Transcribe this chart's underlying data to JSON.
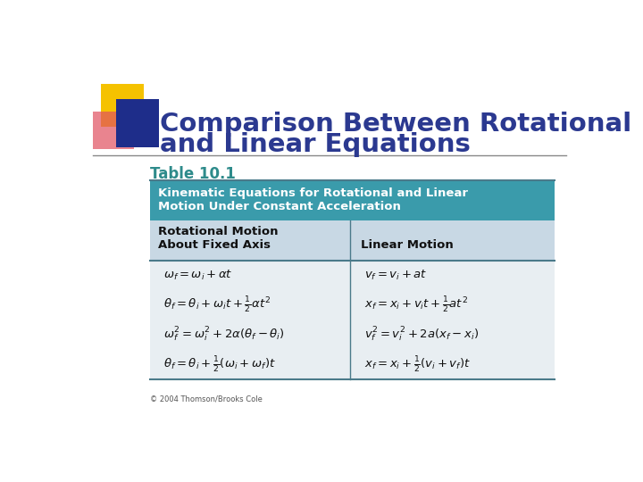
{
  "title_line1": "Comparison Between Rotational",
  "title_line2": "and Linear Equations",
  "title_color": "#2B3990",
  "table_label": "Table 10.1",
  "table_label_color": "#2E8B8B",
  "header_bg": "#3A9BAB",
  "header_text_color": "#FFFFFF",
  "header_text_line1": "Kinematic Equations for Rotational and Linear",
  "header_text_line2": "Motion Under Constant Acceleration",
  "subheader_bg": "#C8D8E4",
  "subheader_col1_line1": "Rotational Motion",
  "subheader_col1_line2": "About Fixed Axis",
  "subheader_col2": "Linear Motion",
  "eq_rot": [
    "$\\omega_f = \\omega_i + \\alpha t$",
    "$\\theta_f = \\theta_i + \\omega_i t + \\frac{1}{2}\\alpha t^2$",
    "$\\omega_f^{2} = \\omega_i^{2} + 2\\alpha(\\theta_f - \\theta_i)$",
    "$\\theta_f = \\theta_i + \\frac{1}{2}(\\omega_i + \\omega_f)t$"
  ],
  "eq_lin": [
    "$v_f = v_i + at$",
    "$x_f = x_i + v_i t + \\frac{1}{2}at^2$",
    "$v_f^{2} = v_i^{2} + 2a(x_f - x_i)$",
    "$x_f = x_i + \\frac{1}{2}(v_i + v_f)t$"
  ],
  "footer_text": "© 2004 Thomson/Brooks Cole",
  "bg_color": "#FFFFFF",
  "yellow": "#F5C200",
  "red": "#E05060",
  "blue_dark": "#1E2D8A",
  "line_color": "#4A7A8A",
  "body_line_color": "#7AAABB"
}
